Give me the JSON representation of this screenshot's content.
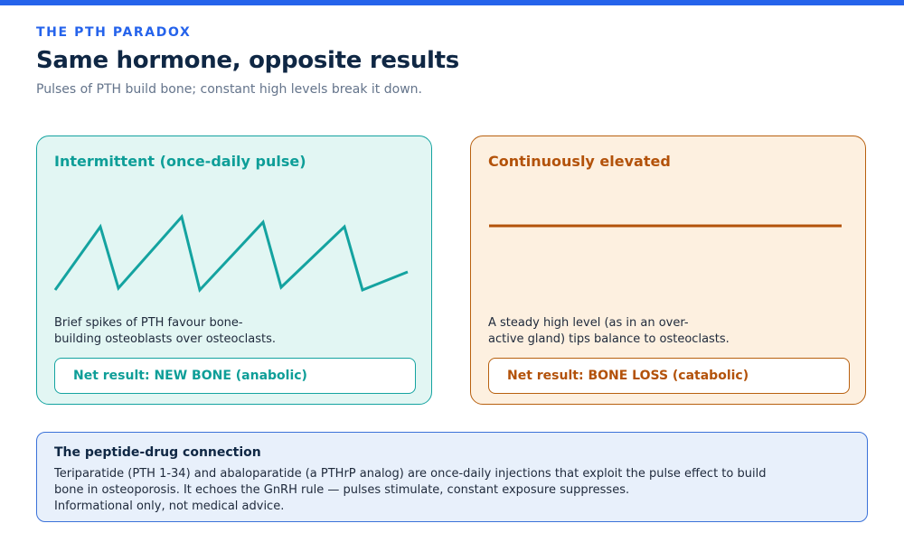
{
  "header": {
    "eyebrow": "THE PTH PARADOX",
    "title": "Same hormone, opposite results",
    "subtitle": "Pulses of PTH build bone; constant high levels break it down."
  },
  "cards": [
    {
      "title": "Intermittent (once-daily pulse)",
      "description_lines": [
        "Brief spikes of PTH favour bone-",
        "building osteoblasts over osteoclasts."
      ],
      "result": "Net result: NEW BONE (anabolic)",
      "accent": "#14a3a0"
    },
    {
      "title": "Continuously elevated",
      "description_lines": [
        "A steady high level (as in an over-",
        "active gland) tips balance to osteoclasts."
      ],
      "result": "Net result: BONE LOSS (catabolic)",
      "accent": "#b8600f"
    }
  ],
  "note": {
    "title": "The peptide-drug connection",
    "lines": [
      "Teriparatide (PTH 1-34) and abaloparatide (a PTHrP analog) are once-daily injections that exploit the pulse effect to build",
      "bone in osteoporosis. It echoes the GnRH rule — pulses stimulate, constant exposure suppresses.",
      "Informational only, not medical advice."
    ]
  },
  "colors": {
    "accent_blue": "#2563eb",
    "teal": "#14a3a0",
    "orange": "#b8600f",
    "navy": "#0f2744"
  }
}
